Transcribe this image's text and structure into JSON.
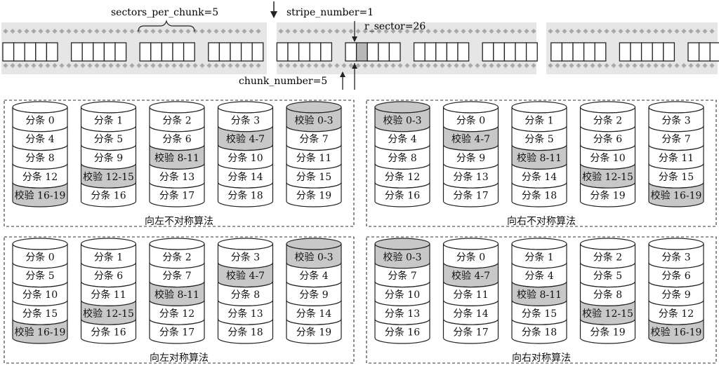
{
  "top_annotations": {
    "sectors_per_chunk": "sectors_per_chunk=5",
    "stripe_number": "stripe_number=1",
    "r_sector": "r_sector=26",
    "chunk_number": "chunk_number=5"
  },
  "highlighted_sector": {
    "chunk_index": 5,
    "sector_index": 1
  },
  "colors": {
    "parity_fill": "#c8c8c8",
    "data_fill": "#ffffff",
    "stroke": "#222222",
    "band": "#e6e6e6",
    "band_dot": "#a8a8a8",
    "sector_highlight": "#b8b8b8"
  },
  "layouts": [
    {
      "name": "left-asymmetric",
      "title": "向左不对称算法",
      "disks": [
        [
          "分条 0",
          "分条 4",
          "分条 8",
          "分条 12",
          "校验 16-19"
        ],
        [
          "分条 1",
          "分条 5",
          "分条 9",
          "校验 12-15",
          "分条 16"
        ],
        [
          "分条 2",
          "分条 6",
          "校验 8-11",
          "分条 13",
          "分条 17"
        ],
        [
          "分条 3",
          "校验 4-7",
          "分条 10",
          "分条 14",
          "分条 18"
        ],
        [
          "校验 0-3",
          "分条 7",
          "分条 11",
          "分条 15",
          "分条 19"
        ]
      ]
    },
    {
      "name": "right-asymmetric",
      "title": "向右不对称算法",
      "disks": [
        [
          "校验 0-3",
          "分条 4",
          "分条 8",
          "分条 12",
          "分条 16"
        ],
        [
          "分条 0",
          "校验 4-7",
          "分条 9",
          "分条 13",
          "分条 17"
        ],
        [
          "分条 1",
          "分条 5",
          "校验 8-11",
          "分条 14",
          "分条 18"
        ],
        [
          "分条 2",
          "分条 6",
          "分条 10",
          "校验 12-15",
          "分条 19"
        ],
        [
          "分条 3",
          "分条 7",
          "分条 11",
          "分条 15",
          "校验 16-19"
        ]
      ]
    },
    {
      "name": "left-symmetric",
      "title": "向左对称算法",
      "disks": [
        [
          "分条 0",
          "分条 5",
          "分条 10",
          "分条 15",
          "校验 16-19"
        ],
        [
          "分条 1",
          "分条 6",
          "分条 11",
          "校验 12-15",
          "分条 16"
        ],
        [
          "分条 2",
          "分条 7",
          "校验 8-11",
          "分条 12",
          "分条 17"
        ],
        [
          "分条 3",
          "校验 4-7",
          "分条 8",
          "分条 13",
          "分条 18"
        ],
        [
          "校验 0-3",
          "分条 4",
          "分条 9",
          "分条 14",
          "分条 19"
        ]
      ]
    },
    {
      "name": "right-symmetric",
      "title": "向右对称算法",
      "disks": [
        [
          "校验 0-3",
          "分条 7",
          "分条 10",
          "分条 13",
          "分条 16"
        ],
        [
          "分条 0",
          "校验 4-7",
          "分条 11",
          "分条 14",
          "分条 17"
        ],
        [
          "分条 1",
          "分条 4",
          "校验 8-11",
          "分条 15",
          "分条 18"
        ],
        [
          "分条 2",
          "分条 5",
          "分条 8",
          "校验 12-15",
          "分条 19"
        ],
        [
          "分条 3",
          "分条 6",
          "分条 9",
          "分条 12",
          "校验 16-19"
        ]
      ]
    }
  ]
}
